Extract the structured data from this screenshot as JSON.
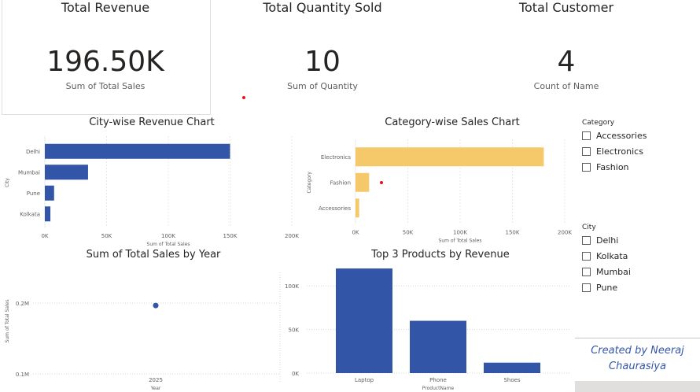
{
  "kpis": {
    "revenue": {
      "title": "Total Revenue",
      "value": "196.50K",
      "sub": "Sum of Total Sales"
    },
    "quantity": {
      "title": "Total Quantity Sold",
      "value": "10",
      "sub": "Sum of Quantity"
    },
    "customers": {
      "title": "Total Customer",
      "value": "4",
      "sub": "Count of Name"
    }
  },
  "colors": {
    "blue": "#3355a8",
    "yellow": "#f5c96a",
    "grid": "#e8e8e8",
    "red": "#e81123"
  },
  "city_chart": {
    "title": "City-wise Revenue Chart",
    "categories": [
      "Delhi",
      "Mumbai",
      "Pune",
      "Kolkata"
    ],
    "values": [
      150000,
      35000,
      7500,
      4500
    ],
    "xticks": [
      "0K",
      "50K",
      "100K",
      "150K",
      "200K"
    ],
    "xlabel": "Sum of Total Sales",
    "ylabel": "City",
    "xmax": 200000
  },
  "category_chart": {
    "title": "Category-wise Sales Chart",
    "categories": [
      "Electronics",
      "Fashion",
      "Accessories"
    ],
    "values": [
      180000,
      13000,
      3500
    ],
    "xticks": [
      "0K",
      "50K",
      "100K",
      "150K",
      "200K"
    ],
    "xlabel": "Sum of Total Sales",
    "ylabel": "Category",
    "xmax": 200000
  },
  "year_chart": {
    "title": "Sum of Total Sales by Year",
    "yticks": [
      "0.2M",
      "0.1M"
    ],
    "xtick": "2025",
    "xlabel": "Year",
    "ylabel": "Sum of Total Sales"
  },
  "products_chart": {
    "title": "Top 3 Products by Revenue",
    "categories": [
      "Laptop",
      "Phone",
      "Shoes"
    ],
    "values": [
      120000,
      60000,
      12000
    ],
    "yticks": [
      "100K",
      "50K",
      "0K"
    ],
    "xlabel": "ProductName",
    "ymax": 130000
  },
  "chart_data": [
    {
      "type": "bar",
      "title": "City-wise Revenue Chart",
      "categories": [
        "Delhi",
        "Mumbai",
        "Pune",
        "Kolkata"
      ],
      "values": [
        150000,
        35000,
        7500,
        4500
      ],
      "xlabel": "Sum of Total Sales",
      "ylabel": "City",
      "xlim": [
        0,
        200000
      ]
    },
    {
      "type": "bar",
      "title": "Category-wise Sales Chart",
      "categories": [
        "Electronics",
        "Fashion",
        "Accessories"
      ],
      "values": [
        180000,
        13000,
        3500
      ],
      "xlabel": "Sum of Total Sales",
      "ylabel": "Category",
      "xlim": [
        0,
        200000
      ]
    },
    {
      "type": "scatter",
      "title": "Sum of Total Sales by Year",
      "x": [
        2025
      ],
      "values": [
        196500
      ],
      "xlabel": "Year",
      "ylabel": "Sum of Total Sales"
    },
    {
      "type": "bar",
      "title": "Top 3 Products by Revenue",
      "categories": [
        "Laptop",
        "Phone",
        "Shoes"
      ],
      "values": [
        120000,
        60000,
        12000
      ],
      "xlabel": "ProductName",
      "ylim": [
        0,
        130000
      ]
    }
  ],
  "slicers": {
    "category": {
      "title": "Category",
      "items": [
        "Accessories",
        "Electronics",
        "Fashion"
      ]
    },
    "city": {
      "title": "City",
      "items": [
        "Delhi",
        "Kolkata",
        "Mumbai",
        "Pune"
      ]
    }
  },
  "credit": {
    "line1": "Created by Neeraj",
    "line2": "Chaurasiya"
  }
}
